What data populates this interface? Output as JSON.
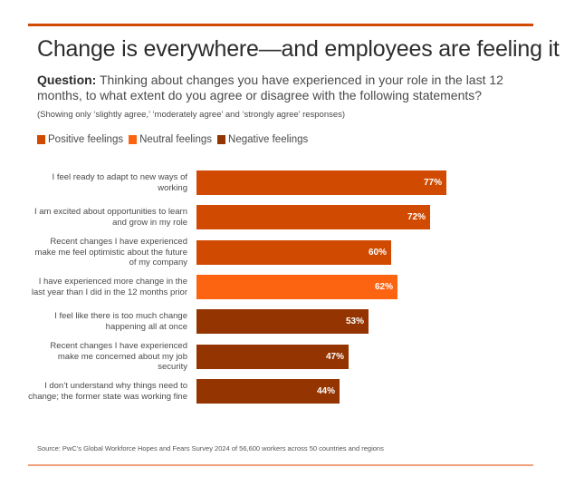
{
  "header": {
    "title": "Change is everywhere—and employees are feeling it",
    "question_label": "Question:",
    "question_text": " Thinking about changes you have experienced in your role in the last 12 months, to what extent do you agree or disagree with the following statements?",
    "note": "(Showing only ‘slightly agree,’ ‘moderately agree’ and ‘strongly agree’ responses)"
  },
  "colors": {
    "accent": "#d04a02",
    "positive": "#d04a02",
    "neutral": "#fd6412",
    "negative": "#933401"
  },
  "chart_data": {
    "type": "bar",
    "orientation": "horizontal",
    "title": "Change is everywhere—and employees are feeling it",
    "xlabel": "",
    "ylabel": "",
    "xlim": [
      0,
      100
    ],
    "grid": false,
    "legend_position": "top-left",
    "legend": [
      {
        "name": "Positive feelings",
        "color": "#d04a02"
      },
      {
        "name": "Neutral feelings",
        "color": "#fd6412"
      },
      {
        "name": "Negative feelings",
        "color": "#933401"
      }
    ],
    "categories": [
      "I feel ready to adapt to new ways of working",
      "I am excited about opportunities to learn and grow in my role",
      "Recent changes I have experienced make me feel optimistic about the future of my company",
      "I have experienced more change in the last year than I did in the 12 months prior",
      "I feel like there is too much change happening all at once",
      "Recent changes I have experienced make me concerned about my job security",
      "I don’t understand why things need to change; the former state was working fine"
    ],
    "values": [
      77,
      72,
      60,
      62,
      53,
      47,
      44
    ],
    "value_labels": [
      "77%",
      "72%",
      "60%",
      "62%",
      "53%",
      "47%",
      "44%"
    ],
    "groups": [
      "Positive feelings",
      "Positive feelings",
      "Positive feelings",
      "Neutral feelings",
      "Negative feelings",
      "Negative feelings",
      "Negative feelings"
    ]
  },
  "footer": {
    "source": "Source: PwC’s Global Workforce Hopes and Fears Survey 2024 of 56,600 workers across 50 countries and regions"
  }
}
